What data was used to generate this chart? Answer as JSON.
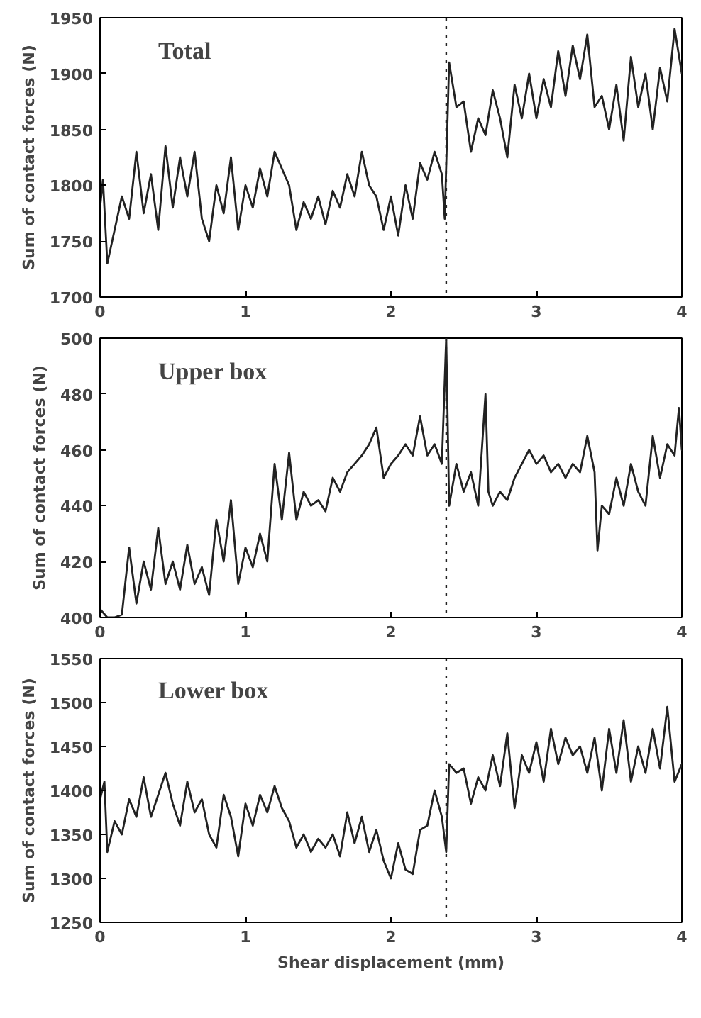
{
  "chart_data": [
    {
      "type": "line",
      "ylabel": "Sum of contact forces (N)",
      "annotations": [
        "Total"
      ],
      "xlim": [
        0,
        4
      ],
      "xticks": [
        0,
        1,
        2,
        3,
        4
      ],
      "ylim": [
        1700,
        1950
      ],
      "yticks": [
        1700,
        1750,
        1800,
        1850,
        1900,
        1950
      ],
      "grid": false,
      "x": [
        0,
        0.02,
        0.05,
        0.1,
        0.15,
        0.2,
        0.25,
        0.3,
        0.35,
        0.4,
        0.45,
        0.5,
        0.55,
        0.6,
        0.65,
        0.7,
        0.75,
        0.8,
        0.85,
        0.9,
        0.95,
        1.0,
        1.05,
        1.1,
        1.15,
        1.2,
        1.25,
        1.3,
        1.35,
        1.4,
        1.45,
        1.5,
        1.55,
        1.6,
        1.65,
        1.7,
        1.75,
        1.8,
        1.85,
        1.9,
        1.95,
        2.0,
        2.05,
        2.1,
        2.15,
        2.2,
        2.25,
        2.3,
        2.35,
        2.37,
        2.4,
        2.45,
        2.5,
        2.55,
        2.6,
        2.65,
        2.7,
        2.75,
        2.8,
        2.85,
        2.9,
        2.95,
        3.0,
        3.05,
        3.1,
        3.15,
        3.2,
        3.25,
        3.3,
        3.35,
        3.4,
        3.45,
        3.5,
        3.55,
        3.6,
        3.65,
        3.7,
        3.75,
        3.8,
        3.85,
        3.9,
        3.95,
        4.0
      ],
      "series": [
        {
          "color": "#222222",
          "values": [
            1780,
            1805,
            1730,
            1760,
            1790,
            1770,
            1830,
            1775,
            1810,
            1760,
            1835,
            1780,
            1825,
            1790,
            1830,
            1770,
            1750,
            1800,
            1775,
            1825,
            1760,
            1800,
            1780,
            1815,
            1790,
            1830,
            1815,
            1800,
            1760,
            1785,
            1770,
            1790,
            1765,
            1795,
            1780,
            1810,
            1790,
            1830,
            1800,
            1790,
            1760,
            1790,
            1755,
            1800,
            1770,
            1820,
            1805,
            1830,
            1810,
            1770,
            1910,
            1870,
            1875,
            1830,
            1860,
            1845,
            1885,
            1860,
            1825,
            1890,
            1860,
            1900,
            1860,
            1895,
            1870,
            1920,
            1880,
            1925,
            1895,
            1935,
            1870,
            1880,
            1850,
            1890,
            1840,
            1915,
            1870,
            1900,
            1850,
            1905,
            1875,
            1940,
            1900
          ]
        }
      ],
      "ref_lines": [
        {
          "axis": "x",
          "value": 2.38,
          "line_style": "dotted"
        }
      ]
    },
    {
      "type": "line",
      "ylabel": "Sum of contact forces (N)",
      "annotations": [
        "Upper box"
      ],
      "xlim": [
        0,
        4
      ],
      "xticks": [
        0,
        1,
        2,
        3,
        4
      ],
      "ylim": [
        400,
        500
      ],
      "yticks": [
        400,
        420,
        440,
        460,
        480,
        500
      ],
      "grid": false,
      "x": [
        0,
        0.05,
        0.1,
        0.15,
        0.2,
        0.25,
        0.3,
        0.35,
        0.4,
        0.45,
        0.5,
        0.55,
        0.6,
        0.65,
        0.7,
        0.75,
        0.8,
        0.85,
        0.9,
        0.95,
        1.0,
        1.05,
        1.1,
        1.15,
        1.2,
        1.25,
        1.3,
        1.35,
        1.4,
        1.45,
        1.5,
        1.55,
        1.6,
        1.65,
        1.7,
        1.75,
        1.8,
        1.85,
        1.9,
        1.95,
        2.0,
        2.05,
        2.1,
        2.15,
        2.2,
        2.25,
        2.3,
        2.35,
        2.38,
        2.4,
        2.45,
        2.5,
        2.55,
        2.6,
        2.65,
        2.67,
        2.7,
        2.75,
        2.8,
        2.85,
        2.9,
        2.95,
        3.0,
        3.05,
        3.1,
        3.15,
        3.2,
        3.25,
        3.3,
        3.35,
        3.4,
        3.42,
        3.45,
        3.5,
        3.55,
        3.6,
        3.65,
        3.7,
        3.75,
        3.8,
        3.85,
        3.9,
        3.95,
        3.98,
        4.0
      ],
      "series": [
        {
          "color": "#222222",
          "values": [
            403,
            400,
            400,
            401,
            425,
            405,
            420,
            410,
            432,
            412,
            420,
            410,
            426,
            412,
            418,
            408,
            435,
            420,
            442,
            412,
            425,
            418,
            430,
            420,
            455,
            435,
            459,
            435,
            445,
            440,
            442,
            438,
            450,
            445,
            452,
            455,
            458,
            462,
            468,
            450,
            455,
            458,
            462,
            458,
            472,
            458,
            462,
            455,
            500,
            440,
            455,
            445,
            452,
            440,
            480,
            445,
            440,
            445,
            442,
            450,
            455,
            460,
            455,
            458,
            452,
            455,
            450,
            455,
            452,
            465,
            452,
            424,
            440,
            437,
            450,
            440,
            455,
            445,
            440,
            465,
            450,
            462,
            458,
            475,
            460
          ]
        }
      ],
      "ref_lines": [
        {
          "axis": "x",
          "value": 2.38,
          "line_style": "dotted"
        }
      ]
    },
    {
      "type": "line",
      "xlabel": "Shear displacement (mm)",
      "ylabel": "Sum of contact forces (N)",
      "annotations": [
        "Lower box"
      ],
      "xlim": [
        0,
        4
      ],
      "xticks": [
        0,
        1,
        2,
        3,
        4
      ],
      "ylim": [
        1250,
        1550
      ],
      "yticks": [
        1250,
        1300,
        1350,
        1400,
        1450,
        1500,
        1550
      ],
      "grid": false,
      "x": [
        0,
        0.03,
        0.05,
        0.1,
        0.15,
        0.2,
        0.25,
        0.3,
        0.35,
        0.4,
        0.45,
        0.5,
        0.55,
        0.6,
        0.65,
        0.7,
        0.75,
        0.8,
        0.85,
        0.9,
        0.95,
        1.0,
        1.05,
        1.1,
        1.15,
        1.2,
        1.25,
        1.3,
        1.35,
        1.4,
        1.45,
        1.5,
        1.55,
        1.6,
        1.65,
        1.7,
        1.75,
        1.8,
        1.85,
        1.9,
        1.95,
        2.0,
        2.05,
        2.1,
        2.15,
        2.2,
        2.25,
        2.3,
        2.35,
        2.38,
        2.4,
        2.45,
        2.5,
        2.55,
        2.6,
        2.65,
        2.7,
        2.75,
        2.8,
        2.85,
        2.9,
        2.95,
        3.0,
        3.05,
        3.1,
        3.15,
        3.2,
        3.25,
        3.3,
        3.35,
        3.4,
        3.45,
        3.5,
        3.55,
        3.6,
        3.65,
        3.7,
        3.75,
        3.8,
        3.85,
        3.9,
        3.95,
        4.0
      ],
      "series": [
        {
          "color": "#222222",
          "values": [
            1390,
            1410,
            1330,
            1365,
            1350,
            1390,
            1370,
            1415,
            1370,
            1395,
            1420,
            1385,
            1360,
            1410,
            1375,
            1390,
            1350,
            1335,
            1395,
            1370,
            1325,
            1385,
            1360,
            1395,
            1375,
            1405,
            1380,
            1365,
            1335,
            1350,
            1330,
            1345,
            1335,
            1350,
            1325,
            1375,
            1340,
            1370,
            1330,
            1355,
            1320,
            1300,
            1340,
            1310,
            1305,
            1355,
            1360,
            1400,
            1370,
            1330,
            1430,
            1420,
            1425,
            1385,
            1415,
            1400,
            1440,
            1405,
            1465,
            1380,
            1440,
            1420,
            1455,
            1410,
            1470,
            1430,
            1460,
            1440,
            1450,
            1420,
            1460,
            1400,
            1470,
            1420,
            1480,
            1410,
            1450,
            1420,
            1470,
            1425,
            1495,
            1410,
            1430
          ]
        }
      ],
      "ref_lines": [
        {
          "axis": "x",
          "value": 2.38,
          "line_style": "dotted"
        }
      ]
    }
  ]
}
